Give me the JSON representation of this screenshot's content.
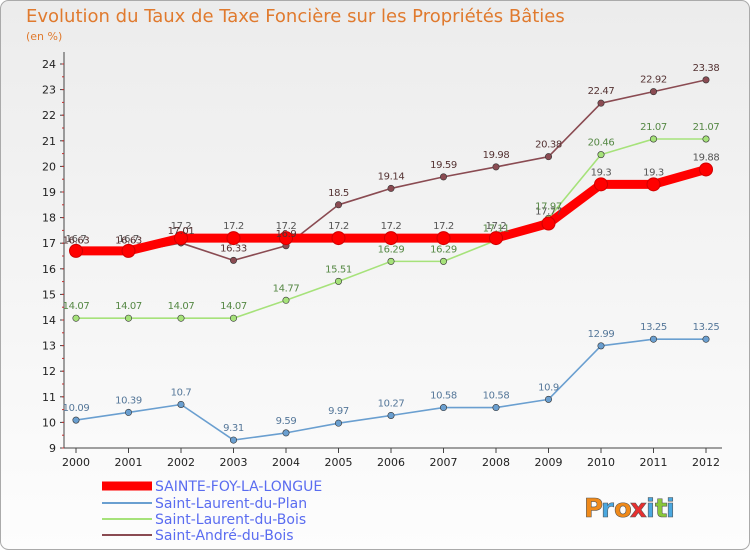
{
  "chart_data": {
    "type": "line",
    "title": "Evolution du Taux de Taxe Foncière sur les Propriétés Bâties",
    "subtitle": "(en %)",
    "x": [
      "2000",
      "2001",
      "2002",
      "2003",
      "2004",
      "2005",
      "2006",
      "2007",
      "2008",
      "2009",
      "2010",
      "2011",
      "2012"
    ],
    "ylim": [
      9,
      24
    ],
    "yticks": [
      9,
      10,
      11,
      12,
      13,
      14,
      15,
      16,
      17,
      18,
      19,
      20,
      21,
      22,
      23,
      24
    ],
    "grid": false,
    "legend_position": "bottom-left",
    "series": [
      {
        "name": "SAINTE-FOY-LA-LONGUE",
        "color": "#ff0000",
        "values": [
          16.7,
          16.7,
          17.2,
          17.2,
          17.2,
          17.2,
          17.2,
          17.2,
          17.2,
          17.77,
          19.3,
          19.3,
          19.88
        ],
        "labels": [
          "16.7",
          "16.7",
          "17.2",
          "17.2",
          "17.2",
          "17.2",
          "17.2",
          "17.2",
          "17.2",
          "17.77",
          "19.3",
          "19.3",
          "19.88"
        ]
      },
      {
        "name": "Saint-Laurent-du-Plan",
        "color": "#6a9fd0",
        "values": [
          10.09,
          10.39,
          10.7,
          9.31,
          9.59,
          9.97,
          10.27,
          10.58,
          10.58,
          10.9,
          12.99,
          13.25,
          13.25
        ],
        "labels": [
          "10.09",
          "10.39",
          "10.7",
          "9.31",
          "9.59",
          "9.97",
          "10.27",
          "10.58",
          "10.58",
          "10.9",
          "12.99",
          "13.25",
          "13.25"
        ]
      },
      {
        "name": "Saint-Laurent-du-Bois",
        "color": "#a6e27a",
        "values": [
          14.07,
          14.07,
          14.07,
          14.07,
          14.77,
          15.51,
          16.29,
          16.29,
          17.11,
          17.97,
          20.46,
          21.07,
          21.07
        ],
        "labels": [
          "14.07",
          "14.07",
          "14.07",
          "14.07",
          "14.77",
          "15.51",
          "16.29",
          "16.29",
          "17.11",
          "17.97",
          "20.46",
          "21.07",
          "21.07"
        ]
      },
      {
        "name": "Saint-André-du-Bois",
        "color": "#8a4b52",
        "values": [
          16.63,
          16.63,
          17.01,
          16.33,
          16.9,
          18.5,
          19.14,
          19.59,
          19.98,
          20.38,
          22.47,
          22.92,
          23.38
        ],
        "labels": [
          "16.63",
          "16.63",
          "17.01",
          "16.33",
          "16.9",
          "18.5",
          "19.14",
          "19.59",
          "19.98",
          "20.38",
          "22.47",
          "22.92",
          "23.38"
        ]
      }
    ]
  },
  "branding": {
    "logo_letters": [
      "P",
      "r",
      "o",
      "x",
      "i",
      "t",
      "i"
    ],
    "logo_colors": [
      "#f08a1a",
      "#4aa8e0",
      "#f08a1a",
      "#e83030",
      "#4aa8e0",
      "#8ac83a",
      "#4aa8e0"
    ]
  }
}
